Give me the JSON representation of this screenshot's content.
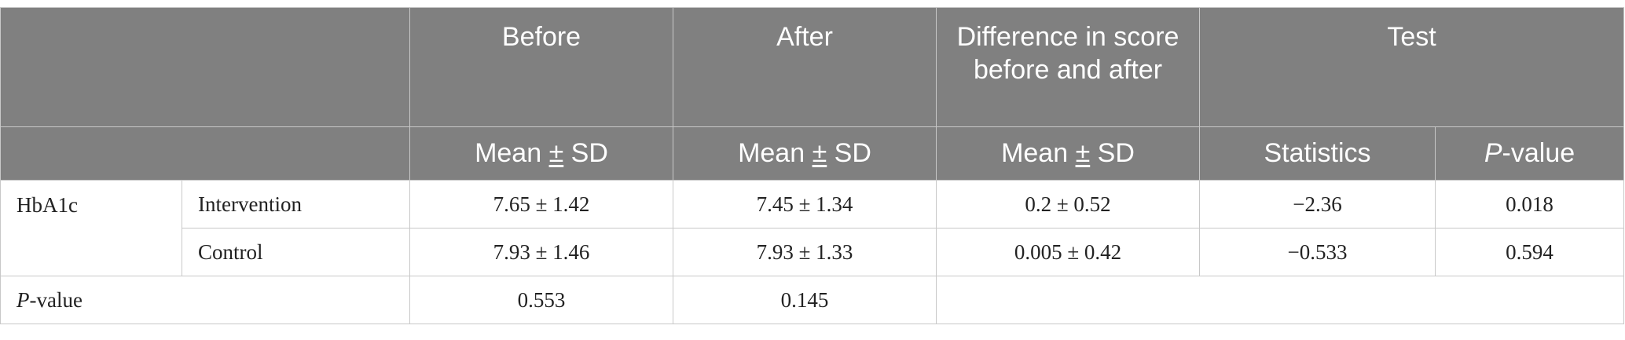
{
  "header": {
    "before": "Before",
    "after": "After",
    "difference": "Difference in score before and after",
    "test": "Test",
    "mean_sd_prefix": "Mean ",
    "mean_sd_pm": "±",
    "mean_sd_suffix": " SD",
    "statistics": "Statistics",
    "pvalue_p": "P",
    "pvalue_rest": "-value"
  },
  "rows": {
    "variable": "HbA1c",
    "intervention": {
      "group": "Intervention",
      "before": "7.65 ± 1.42",
      "after": "7.45 ± 1.34",
      "difference": "0.2 ± 0.52",
      "statistics": "−2.36",
      "p_value": "0.018"
    },
    "control": {
      "group": "Control",
      "before": "7.93 ± 1.46",
      "after": "7.93 ± 1.33",
      "difference": "0.005 ± 0.42",
      "statistics": "−0.533",
      "p_value": "0.594"
    },
    "pvalue_row": {
      "label_p": "P",
      "label_rest": "-value",
      "before": "0.553",
      "after": "0.145"
    }
  }
}
